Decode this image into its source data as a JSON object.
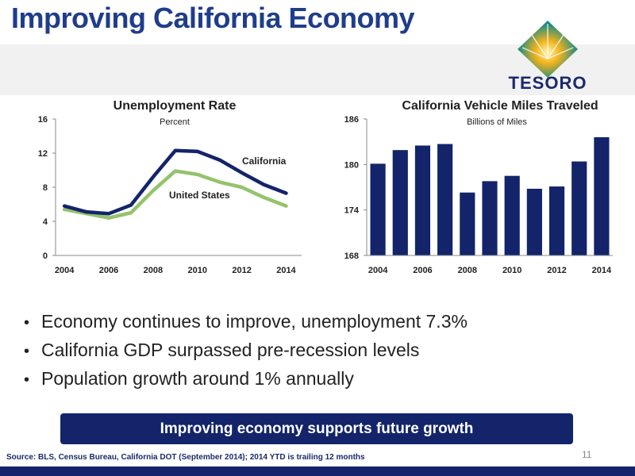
{
  "slide": {
    "title": "Improving California Economy",
    "brand": "TESORO",
    "page_number": "11",
    "source": "Source: BLS, Census Bureau, California DOT (September 2014); 2014 YTD is trailing 12 months",
    "banner": "Improving economy supports future growth",
    "bullets": [
      "Economy continues to improve, unemployment 7.3%",
      "California GDP surpassed pre-recession levels",
      "Population growth around 1% annually"
    ]
  },
  "colors": {
    "navy": "#13246a",
    "green": "#93c36b",
    "title": "#1f3d8a"
  },
  "chart_data": [
    {
      "type": "line",
      "title": "Unemployment Rate",
      "subtitle": "Percent",
      "ylim": [
        0,
        16
      ],
      "yticks": [
        0,
        4,
        8,
        12,
        16
      ],
      "xticks": [
        2004,
        2006,
        2008,
        2010,
        2012,
        2014
      ],
      "x": [
        2004,
        2005,
        2006,
        2007,
        2008,
        2009,
        2010,
        2011,
        2012,
        2013,
        2014
      ],
      "series": [
        {
          "name": "California",
          "color": "#13246a",
          "values": [
            5.8,
            5.1,
            4.9,
            5.9,
            9.2,
            12.3,
            12.2,
            11.2,
            9.7,
            8.3,
            7.3
          ]
        },
        {
          "name": "United States",
          "color": "#93c36b",
          "values": [
            5.4,
            4.9,
            4.4,
            5.0,
            7.6,
            9.9,
            9.5,
            8.6,
            8.0,
            6.8,
            5.8
          ]
        }
      ],
      "grid": false
    },
    {
      "type": "bar",
      "title": "California Vehicle Miles Traveled",
      "subtitle": "Billions of Miles",
      "ylim": [
        168,
        186
      ],
      "yticks": [
        168,
        174,
        180,
        186
      ],
      "xticks": [
        2004,
        2006,
        2008,
        2010,
        2012,
        2014
      ],
      "categories": [
        2004,
        2005,
        2006,
        2007,
        2008,
        2009,
        2010,
        2011,
        2012,
        2013,
        2014
      ],
      "values": [
        180.1,
        181.9,
        182.5,
        182.7,
        176.3,
        177.8,
        178.5,
        176.8,
        177.1,
        180.4,
        183.6
      ],
      "color": "#13246a",
      "grid": false
    }
  ]
}
